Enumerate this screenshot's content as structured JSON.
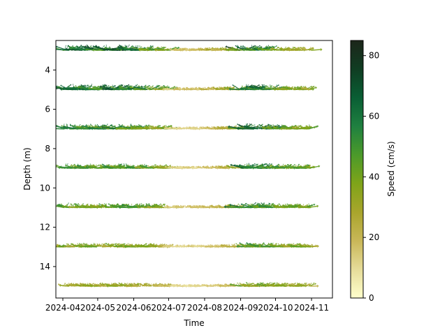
{
  "chart_data": {
    "type": "quiver",
    "xlabel": "Time",
    "ylabel": "Depth (m)",
    "x_ticks": [
      "2024-04",
      "2024-05",
      "2024-06",
      "2024-07",
      "2024-08",
      "2024-09",
      "2024-10",
      "2024-11"
    ],
    "y_ticks": [
      4,
      6,
      8,
      10,
      12,
      14
    ],
    "xlim": [
      "2024-03-26",
      "2024-11-19"
    ],
    "ylim": [
      15.6,
      2.5
    ],
    "y_inverted": true,
    "depths": [
      3,
      5,
      7,
      9,
      11,
      13,
      15
    ],
    "time_range": [
      "2024-04-01",
      "2024-11-01"
    ],
    "colorbar": {
      "label": "Speed (cm/s)",
      "ticks": [
        0,
        20,
        40,
        60,
        80
      ],
      "range": [
        0,
        85
      ],
      "colormap": [
        "#ffffcc",
        "#e6dc99",
        "#c9b758",
        "#a9a52c",
        "#7fa419",
        "#4b9a2a",
        "#1f8040",
        "#095e34",
        "#103d22",
        "#1c261a"
      ]
    },
    "speed_profile": {
      "months": [
        "2024-04",
        "2024-05",
        "2024-06",
        "2024-07",
        "2024-08",
        "2024-09",
        "2024-10"
      ],
      "speeds_by_depth": [
        {
          "depth": 3,
          "values": [
            55,
            60,
            55,
            15,
            18,
            60,
            30
          ]
        },
        {
          "depth": 5,
          "values": [
            55,
            58,
            55,
            15,
            18,
            60,
            35
          ]
        },
        {
          "depth": 7,
          "values": [
            50,
            50,
            50,
            12,
            15,
            58,
            40
          ]
        },
        {
          "depth": 9,
          "values": [
            45,
            45,
            45,
            12,
            15,
            55,
            40
          ]
        },
        {
          "depth": 11,
          "values": [
            45,
            40,
            45,
            15,
            15,
            55,
            40
          ]
        },
        {
          "depth": 13,
          "values": [
            35,
            35,
            35,
            12,
            12,
            45,
            35
          ]
        },
        {
          "depth": 15,
          "values": [
            28,
            30,
            30,
            10,
            10,
            40,
            30
          ]
        }
      ]
    }
  }
}
